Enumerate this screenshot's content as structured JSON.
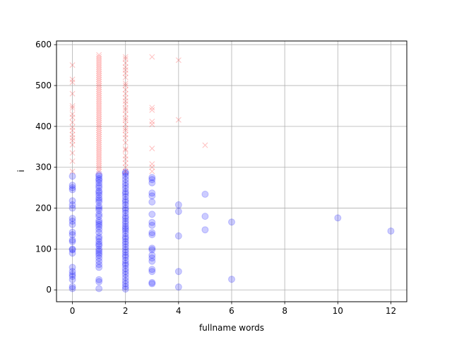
{
  "chart_data": {
    "type": "scatter",
    "title": "",
    "xlabel": "fullname words",
    "ylabel": "i",
    "xlim": [
      -0.6,
      12.6
    ],
    "ylim": [
      -29,
      609
    ],
    "xticks": [
      0,
      2,
      4,
      6,
      8,
      10,
      12
    ],
    "yticks": [
      0,
      100,
      200,
      300,
      400,
      500,
      600
    ],
    "grid": true,
    "legend": "none",
    "series": [
      {
        "marker": "circle",
        "color": "#0000ff",
        "points": [
          [
            0,
            3
          ],
          [
            0,
            8
          ],
          [
            0,
            25
          ],
          [
            0,
            33
          ],
          [
            0,
            38
          ],
          [
            0,
            45
          ],
          [
            0,
            55
          ],
          [
            0,
            90
          ],
          [
            0,
            98
          ],
          [
            0,
            100
          ],
          [
            0,
            118
          ],
          [
            0,
            122
          ],
          [
            0,
            135
          ],
          [
            0,
            141
          ],
          [
            0,
            160
          ],
          [
            0,
            168
          ],
          [
            0,
            175
          ],
          [
            0,
            200
          ],
          [
            0,
            208
          ],
          [
            0,
            218
          ],
          [
            0,
            245
          ],
          [
            0,
            250
          ],
          [
            0,
            256
          ],
          [
            0,
            278
          ],
          [
            1,
            3
          ],
          [
            1,
            20
          ],
          [
            1,
            25
          ],
          [
            1,
            55
          ],
          [
            1,
            62
          ],
          [
            1,
            70
          ],
          [
            1,
            78
          ],
          [
            1,
            85
          ],
          [
            1,
            90
          ],
          [
            1,
            95
          ],
          [
            1,
            100
          ],
          [
            1,
            108
          ],
          [
            1,
            112
          ],
          [
            1,
            118
          ],
          [
            1,
            125
          ],
          [
            1,
            130
          ],
          [
            1,
            140
          ],
          [
            1,
            148
          ],
          [
            1,
            155
          ],
          [
            1,
            160
          ],
          [
            1,
            165
          ],
          [
            1,
            170
          ],
          [
            1,
            180
          ],
          [
            1,
            185
          ],
          [
            1,
            195
          ],
          [
            1,
            200
          ],
          [
            1,
            205
          ],
          [
            1,
            215
          ],
          [
            1,
            220
          ],
          [
            1,
            225
          ],
          [
            1,
            232
          ],
          [
            1,
            238
          ],
          [
            1,
            242
          ],
          [
            1,
            250
          ],
          [
            1,
            255
          ],
          [
            1,
            262
          ],
          [
            1,
            268
          ],
          [
            1,
            272
          ],
          [
            1,
            278
          ],
          [
            1,
            282
          ],
          [
            2,
            2
          ],
          [
            2,
            8
          ],
          [
            2,
            15
          ],
          [
            2,
            22
          ],
          [
            2,
            30
          ],
          [
            2,
            38
          ],
          [
            2,
            45
          ],
          [
            2,
            52
          ],
          [
            2,
            60
          ],
          [
            2,
            65
          ],
          [
            2,
            72
          ],
          [
            2,
            80
          ],
          [
            2,
            85
          ],
          [
            2,
            92
          ],
          [
            2,
            98
          ],
          [
            2,
            105
          ],
          [
            2,
            112
          ],
          [
            2,
            118
          ],
          [
            2,
            125
          ],
          [
            2,
            130
          ],
          [
            2,
            138
          ],
          [
            2,
            145
          ],
          [
            2,
            150
          ],
          [
            2,
            155
          ],
          [
            2,
            162
          ],
          [
            2,
            168
          ],
          [
            2,
            175
          ],
          [
            2,
            180
          ],
          [
            2,
            188
          ],
          [
            2,
            195
          ],
          [
            2,
            200
          ],
          [
            2,
            208
          ],
          [
            2,
            215
          ],
          [
            2,
            220
          ],
          [
            2,
            228
          ],
          [
            2,
            235
          ],
          [
            2,
            240
          ],
          [
            2,
            248
          ],
          [
            2,
            255
          ],
          [
            2,
            262
          ],
          [
            2,
            270
          ],
          [
            2,
            278
          ],
          [
            2,
            285
          ],
          [
            2,
            288
          ],
          [
            3,
            15
          ],
          [
            3,
            18
          ],
          [
            3,
            45
          ],
          [
            3,
            50
          ],
          [
            3,
            70
          ],
          [
            3,
            78
          ],
          [
            3,
            85
          ],
          [
            3,
            98
          ],
          [
            3,
            102
          ],
          [
            3,
            135
          ],
          [
            3,
            140
          ],
          [
            3,
            158
          ],
          [
            3,
            165
          ],
          [
            3,
            185
          ],
          [
            3,
            215
          ],
          [
            3,
            230
          ],
          [
            3,
            237
          ],
          [
            3,
            262
          ],
          [
            3,
            270
          ],
          [
            3,
            275
          ],
          [
            4,
            7
          ],
          [
            4,
            45
          ],
          [
            4,
            132
          ],
          [
            4,
            192
          ],
          [
            4,
            208
          ],
          [
            5,
            147
          ],
          [
            5,
            180
          ],
          [
            5,
            234
          ],
          [
            6,
            26
          ],
          [
            6,
            166
          ],
          [
            10,
            176
          ],
          [
            12,
            144
          ]
        ]
      },
      {
        "marker": "x",
        "color": "#ff0000",
        "points": [
          [
            0,
            290
          ],
          [
            0,
            315
          ],
          [
            0,
            335
          ],
          [
            0,
            355
          ],
          [
            0,
            365
          ],
          [
            0,
            372
          ],
          [
            0,
            380
          ],
          [
            0,
            390
          ],
          [
            0,
            398
          ],
          [
            0,
            410
          ],
          [
            0,
            422
          ],
          [
            0,
            430
          ],
          [
            0,
            445
          ],
          [
            0,
            450
          ],
          [
            0,
            480
          ],
          [
            0,
            508
          ],
          [
            0,
            515
          ],
          [
            0,
            550
          ],
          [
            1,
            290
          ],
          [
            1,
            295
          ],
          [
            1,
            300
          ],
          [
            1,
            305
          ],
          [
            1,
            310
          ],
          [
            1,
            315
          ],
          [
            1,
            320
          ],
          [
            1,
            325
          ],
          [
            1,
            330
          ],
          [
            1,
            335
          ],
          [
            1,
            340
          ],
          [
            1,
            345
          ],
          [
            1,
            350
          ],
          [
            1,
            355
          ],
          [
            1,
            360
          ],
          [
            1,
            365
          ],
          [
            1,
            370
          ],
          [
            1,
            375
          ],
          [
            1,
            380
          ],
          [
            1,
            385
          ],
          [
            1,
            390
          ],
          [
            1,
            395
          ],
          [
            1,
            400
          ],
          [
            1,
            405
          ],
          [
            1,
            410
          ],
          [
            1,
            415
          ],
          [
            1,
            420
          ],
          [
            1,
            425
          ],
          [
            1,
            430
          ],
          [
            1,
            435
          ],
          [
            1,
            440
          ],
          [
            1,
            445
          ],
          [
            1,
            450
          ],
          [
            1,
            455
          ],
          [
            1,
            460
          ],
          [
            1,
            465
          ],
          [
            1,
            470
          ],
          [
            1,
            475
          ],
          [
            1,
            480
          ],
          [
            1,
            485
          ],
          [
            1,
            490
          ],
          [
            1,
            495
          ],
          [
            1,
            500
          ],
          [
            1,
            505
          ],
          [
            1,
            510
          ],
          [
            1,
            515
          ],
          [
            1,
            520
          ],
          [
            1,
            525
          ],
          [
            1,
            530
          ],
          [
            1,
            535
          ],
          [
            1,
            540
          ],
          [
            1,
            545
          ],
          [
            1,
            550
          ],
          [
            1,
            555
          ],
          [
            1,
            560
          ],
          [
            1,
            565
          ],
          [
            1,
            570
          ],
          [
            1,
            575
          ],
          [
            2,
            290
          ],
          [
            2,
            300
          ],
          [
            2,
            310
          ],
          [
            2,
            320
          ],
          [
            2,
            328
          ],
          [
            2,
            342
          ],
          [
            2,
            345
          ],
          [
            2,
            360
          ],
          [
            2,
            372
          ],
          [
            2,
            380
          ],
          [
            2,
            390
          ],
          [
            2,
            395
          ],
          [
            2,
            405
          ],
          [
            2,
            415
          ],
          [
            2,
            420
          ],
          [
            2,
            430
          ],
          [
            2,
            440
          ],
          [
            2,
            445
          ],
          [
            2,
            455
          ],
          [
            2,
            462
          ],
          [
            2,
            470
          ],
          [
            2,
            480
          ],
          [
            2,
            490
          ],
          [
            2,
            500
          ],
          [
            2,
            505
          ],
          [
            2,
            520
          ],
          [
            2,
            530
          ],
          [
            2,
            538
          ],
          [
            2,
            545
          ],
          [
            2,
            555
          ],
          [
            2,
            565
          ],
          [
            2,
            570
          ],
          [
            3,
            290
          ],
          [
            3,
            300
          ],
          [
            3,
            308
          ],
          [
            3,
            346
          ],
          [
            3,
            405
          ],
          [
            3,
            412
          ],
          [
            3,
            440
          ],
          [
            3,
            446
          ],
          [
            3,
            570
          ],
          [
            4,
            416
          ],
          [
            4,
            562
          ],
          [
            5,
            354
          ]
        ]
      }
    ]
  }
}
